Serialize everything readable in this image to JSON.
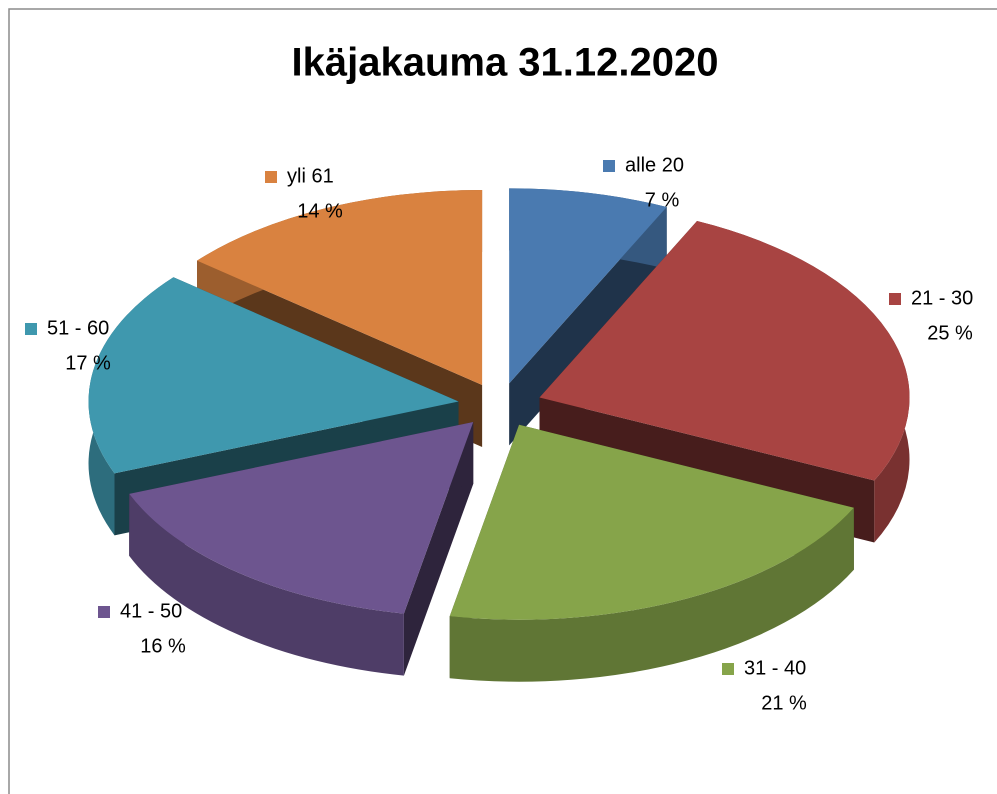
{
  "chart_data": {
    "type": "pie3d",
    "title": "Ikäjakauma 31.12.2020",
    "categories": [
      "alle 20",
      "21 - 30",
      "31 - 40",
      "41 - 50",
      "51 - 60",
      "yli 61"
    ],
    "values": [
      7,
      25,
      21,
      16,
      17,
      14
    ],
    "value_labels": [
      "7 %",
      "25 %",
      "21 %",
      "16 %",
      "17 %",
      "14 %"
    ],
    "colors": [
      "#4a7ab0",
      "#a84442",
      "#86a44a",
      "#6d558f",
      "#3f98ae",
      "#d98240"
    ]
  }
}
